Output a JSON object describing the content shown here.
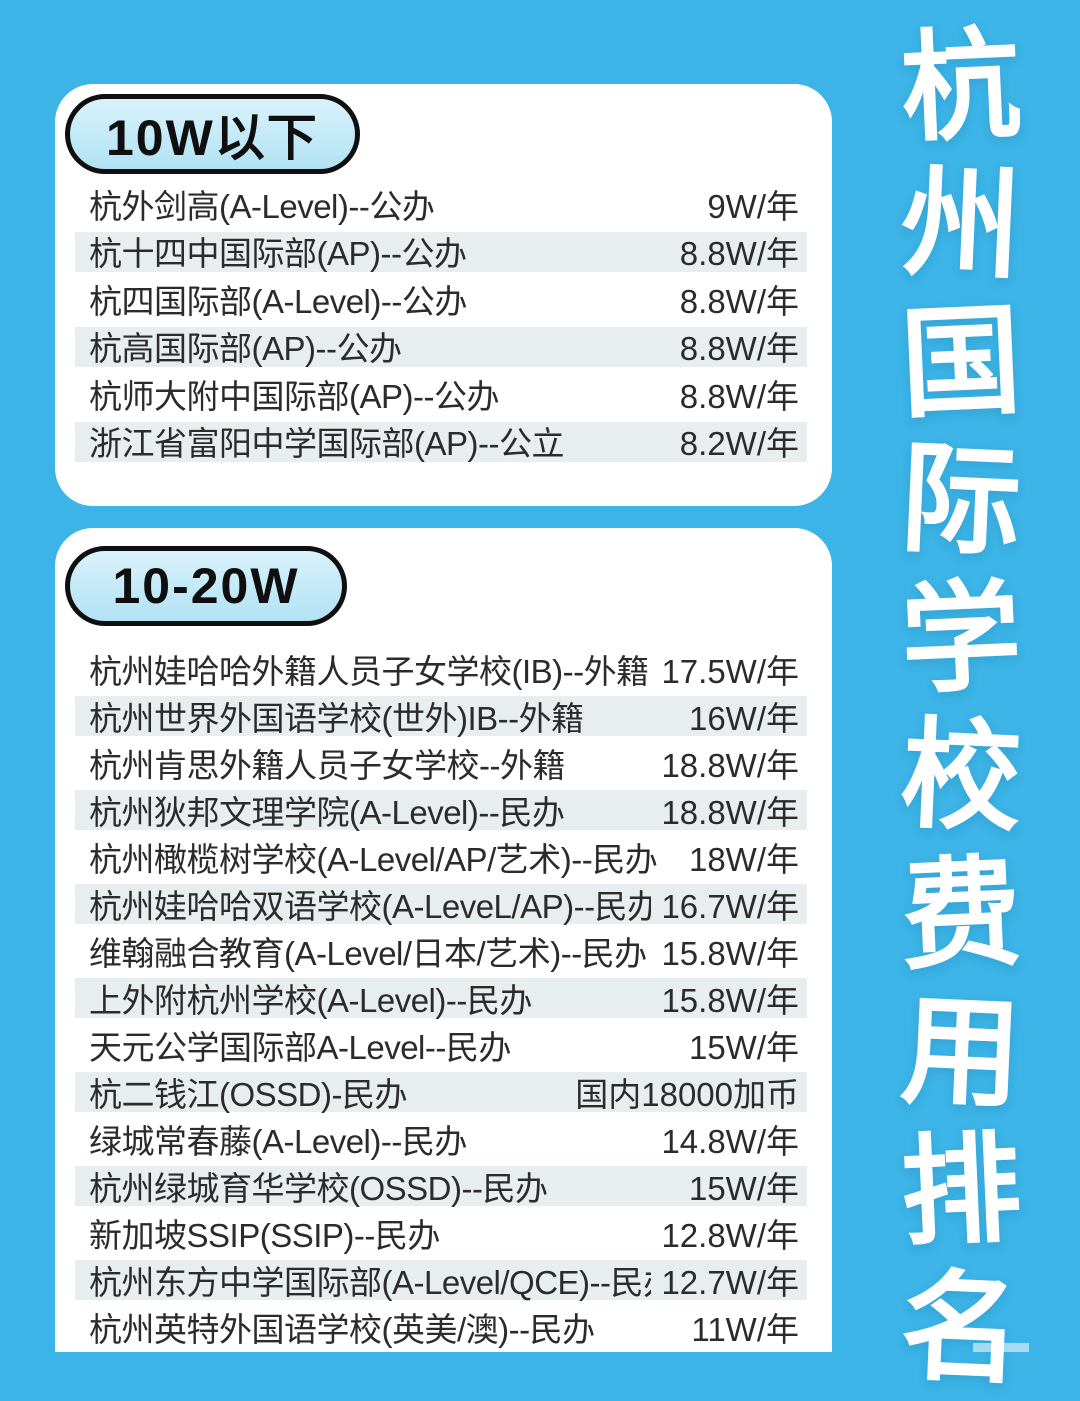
{
  "page": {
    "vertical_title": "杭州国际学校费用排名"
  },
  "colors": {
    "background": "#3CB4E7",
    "card": "#FFFFFF",
    "badge_fill_top": "#D9F2FB",
    "badge_fill_bottom": "#B1E2F4",
    "badge_border": "#0F0F0F",
    "row_stripe": "#E8EDEF",
    "row_text": "#2B2B2B",
    "title_text": "#FFFFFF"
  },
  "cards": [
    {
      "badge": "10W以下",
      "rows": [
        {
          "school": "杭外剑高(A-Level)--公办",
          "price": "9W/年"
        },
        {
          "school": "杭十四中国际部(AP)--公办",
          "price": "8.8W/年"
        },
        {
          "school": "杭四国际部(A-Level)--公办",
          "price": "8.8W/年"
        },
        {
          "school": "杭高国际部(AP)--公办",
          "price": "8.8W/年"
        },
        {
          "school": "杭师大附中国际部(AP)--公办",
          "price": "8.8W/年"
        },
        {
          "school": "浙江省富阳中学国际部(AP)--公立",
          "price": "8.2W/年"
        }
      ]
    },
    {
      "badge": "10-20W",
      "rows": [
        {
          "school": "杭州娃哈哈外籍人员子女学校(IB)--外籍",
          "price": "17.5W/年"
        },
        {
          "school": "杭州世界外国语学校(世外)IB--外籍",
          "price": "16W/年"
        },
        {
          "school": "杭州肯思外籍人员子女学校--外籍",
          "price": "18.8W/年"
        },
        {
          "school": "杭州狄邦文理学院(A-Level)--民办",
          "price": "18.8W/年"
        },
        {
          "school": "杭州橄榄树学校(A-Level/AP/艺术)--民办",
          "price": "18W/年"
        },
        {
          "school": "杭州娃哈哈双语学校(A-LeveL/AP)--民办",
          "price": "16.7W/年"
        },
        {
          "school": "维翰融合教育(A-Level/日本/艺术)--民办",
          "price": "15.8W/年"
        },
        {
          "school": "上外附杭州学校(A-Level)--民办",
          "price": "15.8W/年"
        },
        {
          "school": "天元公学国际部A-Level--民办",
          "price": "15W/年"
        },
        {
          "school": "杭二钱江(OSSD)-民办",
          "price": "国内18000加币"
        },
        {
          "school": "绿城常春藤(A-Level)--民办",
          "price": "14.8W/年"
        },
        {
          "school": "杭州绿城育华学校(OSSD)--民办",
          "price": "15W/年"
        },
        {
          "school": "新加坡SSIP(SSIP)--民办",
          "price": "12.8W/年"
        },
        {
          "school": "杭州东方中学国际部(A-Level/QCE)--民办",
          "price": "12.7W/年"
        },
        {
          "school": "杭州英特外国语学校(英美/澳)--民办",
          "price": "11W/年"
        }
      ]
    }
  ]
}
